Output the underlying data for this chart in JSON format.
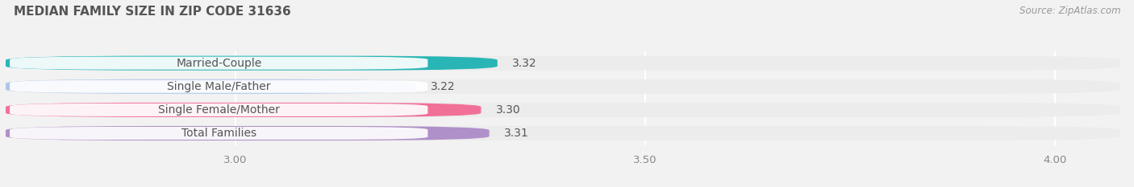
{
  "title": "MEDIAN FAMILY SIZE IN ZIP CODE 31636",
  "source": "Source: ZipAtlas.com",
  "categories": [
    "Married-Couple",
    "Single Male/Father",
    "Single Female/Mother",
    "Total Families"
  ],
  "values": [
    3.32,
    3.22,
    3.3,
    3.31
  ],
  "bar_colors": [
    "#29b5b5",
    "#aec6e8",
    "#f07098",
    "#b090c8"
  ],
  "xlim_min": 2.72,
  "xlim_max": 4.08,
  "xticks": [
    3.0,
    3.5,
    4.0
  ],
  "background_color": "#f2f2f2",
  "bar_bg_color": "#ececec",
  "label_bg_color": "#ffffff",
  "title_color": "#555555",
  "source_color": "#999999",
  "label_text_color": "#555555",
  "value_text_color": "#555555",
  "bar_height": 0.62,
  "label_fontsize": 10,
  "title_fontsize": 11,
  "value_fontsize": 10,
  "tick_fontsize": 9.5
}
